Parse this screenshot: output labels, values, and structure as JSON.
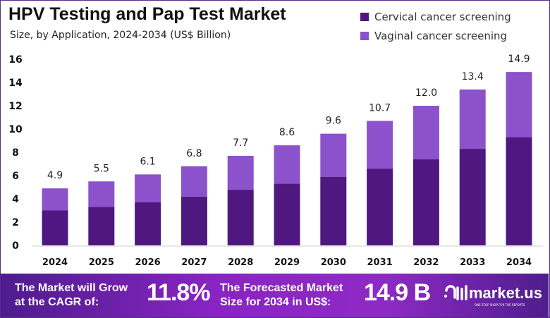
{
  "chart_data": {
    "type": "bar",
    "stacked": true,
    "title": "HPV Testing and Pap Test Market",
    "subtitle": "Size, by Application, 2024-2034 (US$ Billion)",
    "categories": [
      "2024",
      "2025",
      "2026",
      "2027",
      "2028",
      "2029",
      "2030",
      "2031",
      "2032",
      "2033",
      "2034"
    ],
    "series": [
      {
        "name": "Cervical cancer screening",
        "color": "#4f1880",
        "values": [
          3.0,
          3.3,
          3.7,
          4.2,
          4.8,
          5.3,
          5.9,
          6.6,
          7.4,
          8.3,
          9.3
        ]
      },
      {
        "name": "Vaginal cancer screening",
        "color": "#8b52cc",
        "values": [
          1.9,
          2.2,
          2.4,
          2.6,
          2.9,
          3.3,
          3.7,
          4.1,
          4.6,
          5.1,
          5.6
        ]
      }
    ],
    "totals": [
      "4.9",
      "5.5",
      "6.1",
      "6.8",
      "7.7",
      "8.6",
      "9.6",
      "10.7",
      "12.0",
      "13.4",
      "14.9"
    ],
    "yticks": [
      "0",
      "2",
      "4",
      "6",
      "8",
      "10",
      "12",
      "14",
      "16"
    ],
    "ylim": [
      0,
      16
    ],
    "grid": false,
    "legend": "top-right"
  },
  "banner": {
    "cagr_label_1": "The Market will Grow",
    "cagr_label_2": "at the CAGR of:",
    "cagr_value": "11.8%",
    "forecast_label_1": "The Forecasted Market",
    "forecast_label_2": "Size for 2034 in US$:",
    "forecast_value": "14.9 B",
    "logo_name": "market.us",
    "logo_tagline": "ONE STOP SHOP FOR THE REPORTS"
  }
}
